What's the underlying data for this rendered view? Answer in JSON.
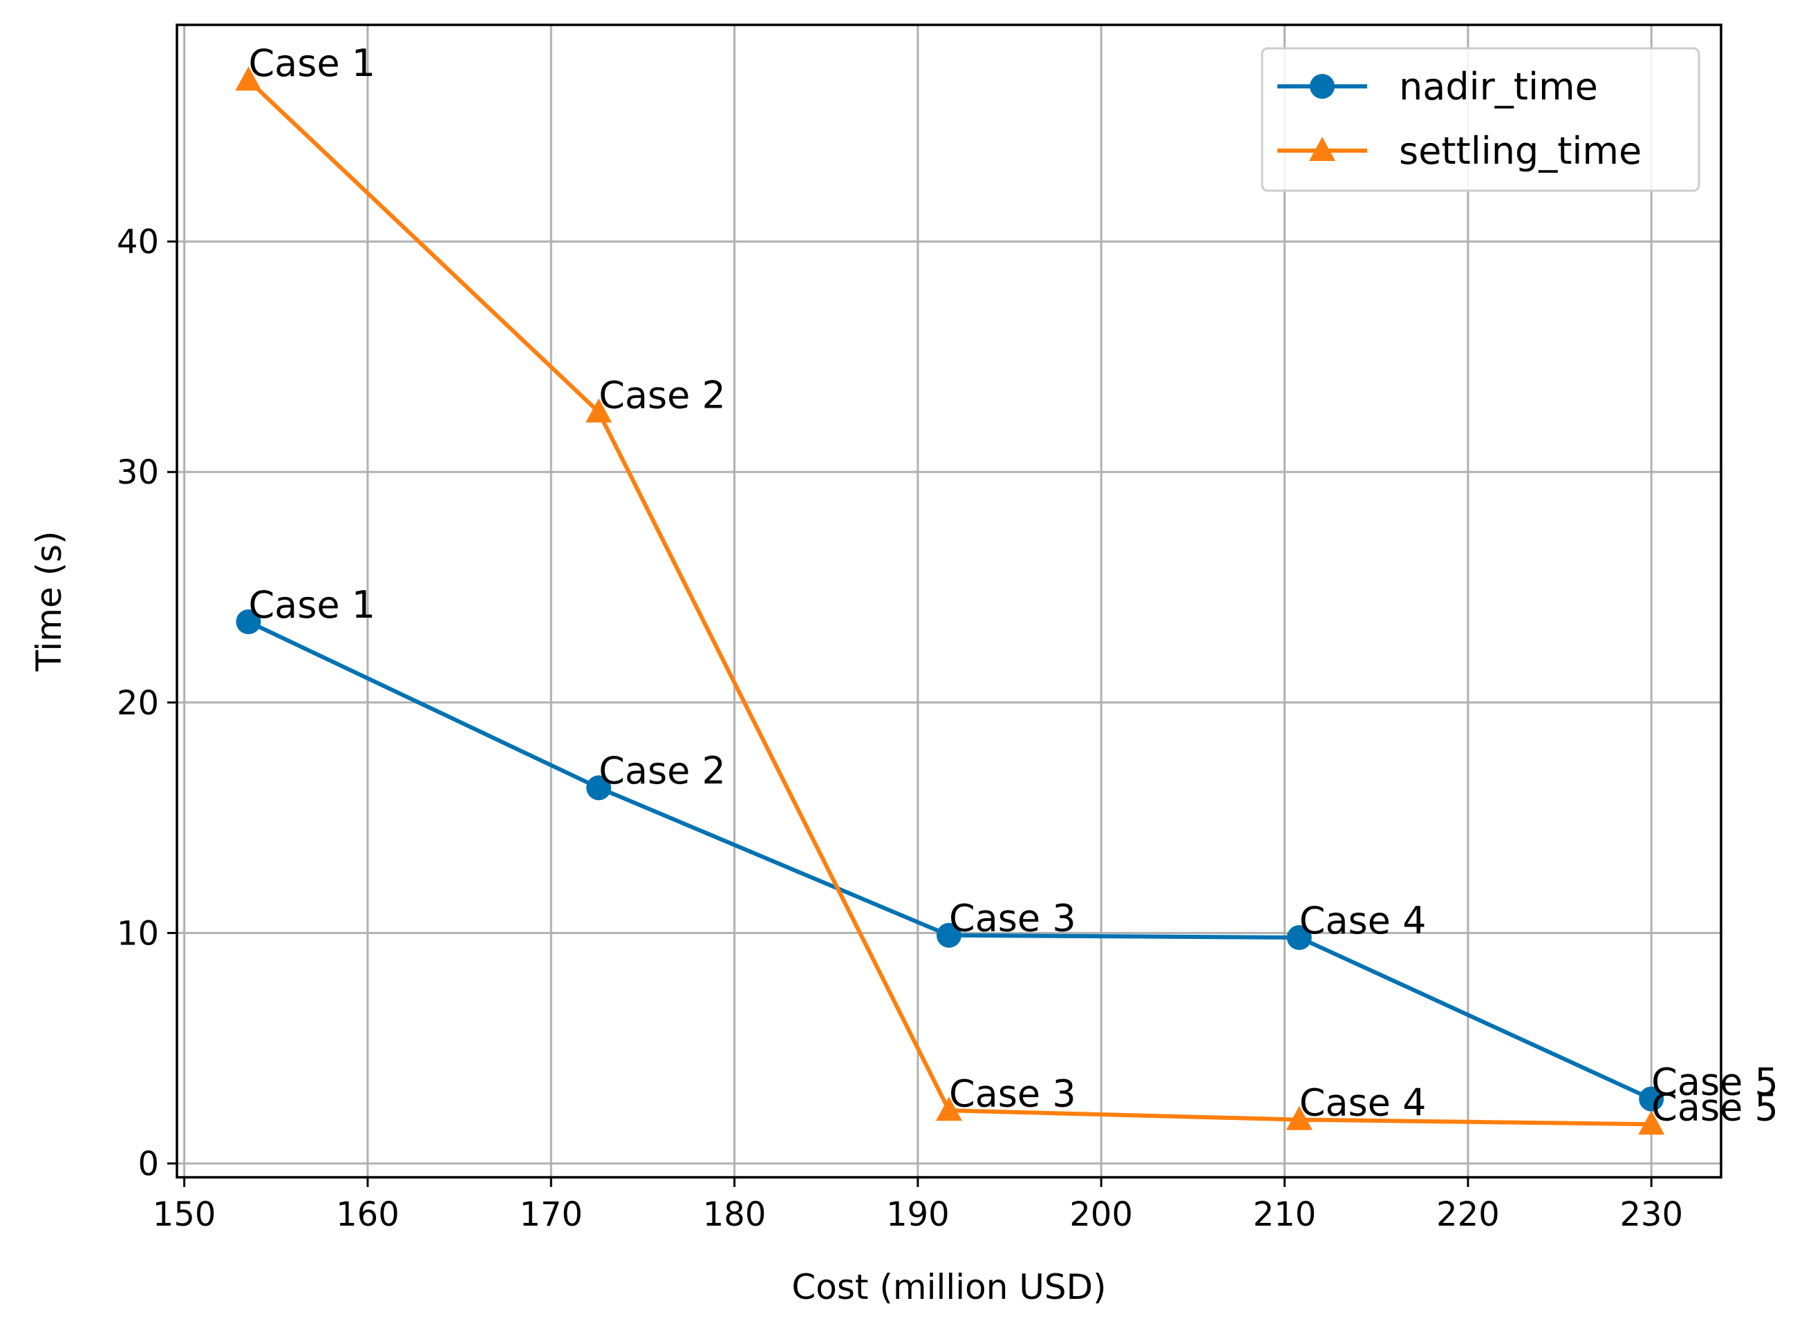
{
  "chart_data": {
    "type": "line",
    "title": "",
    "xlabel": "Cost (million USD)",
    "ylabel": "Time (s)",
    "xlim": [
      149.6,
      233.8
    ],
    "ylim": [
      -0.6,
      49.4
    ],
    "xticks": [
      150,
      160,
      170,
      180,
      190,
      200,
      210,
      220,
      230
    ],
    "yticks": [
      0,
      10,
      20,
      30,
      40
    ],
    "grid": true,
    "legend_position": "top-right",
    "x": [
      153.5,
      172.6,
      191.7,
      210.8,
      230.0
    ],
    "series": [
      {
        "name": "nadir_time",
        "color": "#0072b2",
        "marker": "circle",
        "values": [
          23.5,
          16.3,
          9.9,
          9.8,
          2.8
        ],
        "labels": [
          "Case 1",
          "Case 2",
          "Case 3",
          "Case 4",
          "Case 5"
        ]
      },
      {
        "name": "settling_time",
        "color": "#ff7f0e",
        "marker": "triangle",
        "values": [
          47.0,
          32.6,
          2.3,
          1.9,
          1.7
        ],
        "labels": [
          "Case 1",
          "Case 2",
          "Case 3",
          "Case 4",
          "Case 5"
        ]
      }
    ]
  }
}
